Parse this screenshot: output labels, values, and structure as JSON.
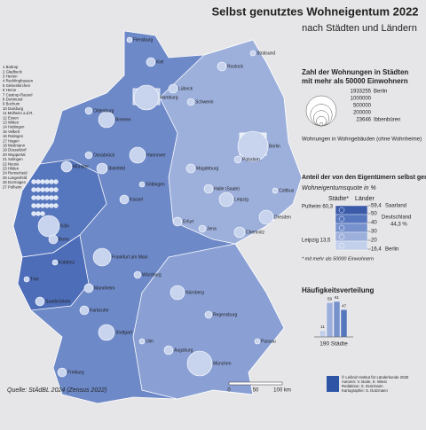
{
  "header": {
    "title": "Selbst genutztes Wohneigentum 2022",
    "subtitle": "nach Städten und Ländern"
  },
  "numbered_list": [
    "1 Bottrop",
    "2 Gladbeck",
    "3 Herten",
    "4 Recklinghausen",
    "5 Gelsenkirchen",
    "6 Herne",
    "7 Castrop-Rauxel",
    "8 Dortmund",
    "9 Bochum",
    "10 Duisburg",
    "11 Mülheim a.d.R.",
    "12 Essen",
    "13 Witten",
    "14 Hattingen",
    "15 Velbert",
    "16 Ratingen",
    "17 Hagen",
    "18 Mettmann",
    "19 Düsseldorf",
    "20 Wuppertal",
    "21 Solingen",
    "22 Neuss",
    "23 Hilden",
    "24 Remscheid",
    "25 Langenfeld",
    "26 Dormagen",
    "27 Pulheim"
  ],
  "cities": [
    "Flensburg",
    "Kiel",
    "Lübeck",
    "Rostock",
    "Stralsund",
    "Hamburg",
    "Schwerin",
    "Bremen",
    "Oldenburg",
    "Osnabrück",
    "Hannover",
    "Berlin",
    "Potsdam",
    "Magdeburg",
    "Cottbus",
    "Leipzig",
    "Halle (Saale)",
    "Dresden",
    "Erfurt",
    "Jena",
    "Chemnitz",
    "Kassel",
    "Göttingen",
    "Bielefeld",
    "Münster",
    "Köln",
    "Bonn",
    "Koblenz",
    "Trier",
    "Frankfurt am Main",
    "Würzburg",
    "Nürnberg",
    "Mannheim",
    "Saarbrücken",
    "Karlsruhe",
    "Stuttgart",
    "Ulm",
    "Augsburg",
    "München",
    "Freiburg",
    "Regensburg",
    "Passau"
  ],
  "size_legend": {
    "title": "Zahl der Wohnungen in Städten mit mehr als 50000 Einwohnern",
    "entries": [
      {
        "value": 1933255,
        "name": "Berlin"
      },
      {
        "value": 1000000
      },
      {
        "value": 500000
      },
      {
        "value": 200000
      },
      {
        "value": 23646,
        "name": "Ibbenbüren"
      }
    ],
    "note": "Wohnungen in Wohngebäuden (ohne Wohnheime)"
  },
  "quota_legend": {
    "title": "Anteil der von den Eigentümern selbst genutzten Wohnungen",
    "subtitle": "Wohneigentumsquote in %",
    "col_cities": "Städte*",
    "col_states": "Länder",
    "classes": [
      {
        "value": 59.4,
        "label": "59,4",
        "name": "Saarland"
      },
      50,
      40,
      30,
      20,
      {
        "value": 16.4,
        "label": "16,4",
        "name": "Berlin"
      }
    ],
    "colors": [
      "#3b5aa8",
      "#5676bd",
      "#7791cc",
      "#9db0dc",
      "#c3d0eb",
      "#e2e8f5"
    ],
    "max_city": "Pulheim 60,3",
    "min_city": "Leipzig 13,5",
    "germany": "Deutschland",
    "germany_value": "44,3 %",
    "footnote": "* mit mehr als 50000 Einwohnern"
  },
  "histogram": {
    "title": "Häufigkeitsverteilung",
    "values": [
      11,
      59,
      61,
      47
    ],
    "total": "190 Städte"
  },
  "footer": {
    "source": "Quelle: StÄdBL 2024 (Zensus 2022)",
    "scale": [
      "0",
      "50",
      "100 km"
    ],
    "credits": [
      "© Leibniz-Institut für Länderkunde 2025",
      "Autoren: V. Bode, K. Wiest",
      "Redaktion: S. Dutzmann",
      "Kartographie: S. Dutzmann"
    ]
  }
}
